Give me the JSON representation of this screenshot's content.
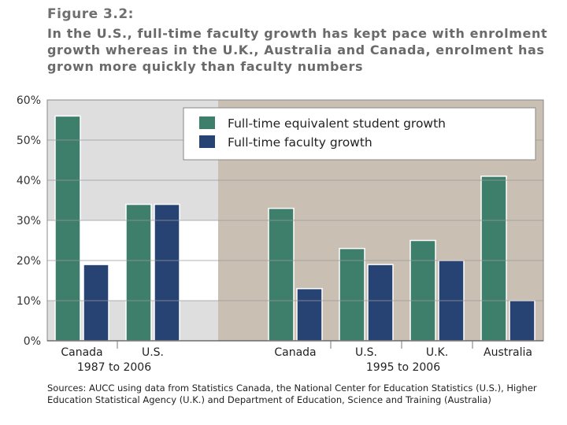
{
  "figure": {
    "label": "Figure 3.2:",
    "title": "In the U.S., full-time faculty growth has kept pace with enrolment growth whereas in the U.K., Australia and Canada, enrolment has grown more quickly than faculty numbers"
  },
  "chart_data": {
    "type": "bar",
    "ylim": [
      0,
      60
    ],
    "yticks": [
      "0%",
      "10%",
      "20%",
      "30%",
      "40%",
      "50%",
      "60%"
    ],
    "colors": {
      "student": "#3d7f6b",
      "faculty": "#274373",
      "panel1": "#dedede",
      "panel2": "#c9bfb2"
    },
    "series": [
      {
        "name": "Full-time equivalent student growth",
        "key": "student"
      },
      {
        "name": "Full-time faculty growth",
        "key": "faculty"
      }
    ],
    "groups": [
      {
        "period": "1987 to 2006",
        "categories": [
          "Canada",
          "U.S."
        ],
        "student": [
          56,
          34
        ],
        "faculty": [
          19,
          34
        ]
      },
      {
        "period": "1995 to 2006",
        "categories": [
          "Canada",
          "U.S.",
          "U.K.",
          "Australia"
        ],
        "student": [
          33,
          23,
          25,
          41
        ],
        "faculty": [
          13,
          19,
          20,
          10
        ]
      }
    ]
  },
  "sources": "Sources: AUCC using data from Statistics Canada, the National Center for Education Statistics (U.S.), Higher Education Statistical Agency (U.K.) and Department of Education, Science and Training (Australia)"
}
